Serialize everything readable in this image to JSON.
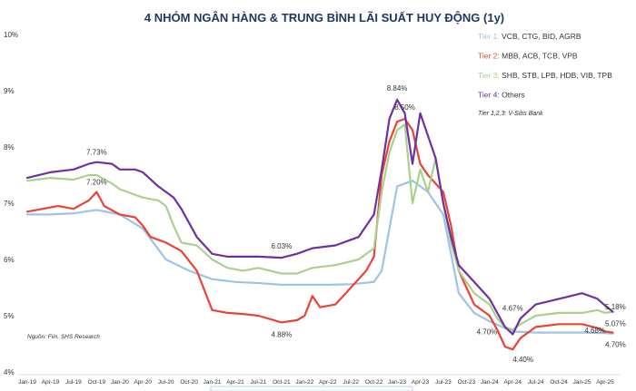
{
  "chart_data": {
    "type": "line",
    "title": "4 NHÓM NGÂN HÀNG & TRUNG BÌNH LÃI SUẤT HUY ĐỘNG (1y)",
    "ylim": [
      4,
      10
    ],
    "yticks": [
      "4%",
      "5%",
      "6%",
      "7%",
      "8%",
      "9%",
      "10%"
    ],
    "x_labels": [
      "Jan-19",
      "Apr-19",
      "Jul-19",
      "Oct-19",
      "Jan-20",
      "Apr-20",
      "Jul-20",
      "Oct-20",
      "Jan-21",
      "Apr-21",
      "Jul-21",
      "Oct-21",
      "Jan-22",
      "Apr-22",
      "Jul-22",
      "Oct-22",
      "Jan-23",
      "Apr-23",
      "Jul-23",
      "Oct-23",
      "Jan-24",
      "Apr-24",
      "Jul-24",
      "Oct-24",
      "Jan-25",
      "Apr-25"
    ],
    "legend_note": "Tier 1,2,3: V-Sibs Bank",
    "source": "Nguồn: Fiin, SHS Research",
    "series": [
      {
        "name": "Tier 1: VCB, CTG, BID, AGRB",
        "color": "#9dc3e6",
        "points": [
          [
            0,
            6.8
          ],
          [
            3,
            6.8
          ],
          [
            6,
            6.82
          ],
          [
            9,
            6.88
          ],
          [
            12,
            6.8
          ],
          [
            15,
            6.55
          ],
          [
            18,
            6.0
          ],
          [
            21,
            5.8
          ],
          [
            24,
            5.65
          ],
          [
            27,
            5.6
          ],
          [
            30,
            5.58
          ],
          [
            33,
            5.55
          ],
          [
            36,
            5.55
          ],
          [
            39,
            5.55
          ],
          [
            42,
            5.56
          ],
          [
            45,
            5.6
          ],
          [
            46,
            5.8
          ],
          [
            48,
            7.3
          ],
          [
            50,
            7.4
          ],
          [
            51,
            7.3
          ],
          [
            52,
            7.2
          ],
          [
            54,
            6.8
          ],
          [
            56,
            5.4
          ],
          [
            58,
            5.05
          ],
          [
            60,
            4.9
          ],
          [
            62,
            4.78
          ],
          [
            63,
            4.72
          ],
          [
            66,
            4.7
          ],
          [
            69,
            4.7
          ],
          [
            72,
            4.7
          ],
          [
            75,
            4.69
          ],
          [
            76,
            4.68
          ]
        ]
      },
      {
        "name": "Tier 2: MBB, ACB, TCB, VPB",
        "color": "#ea4335",
        "points": [
          [
            0,
            6.85
          ],
          [
            2,
            6.9
          ],
          [
            4,
            6.95
          ],
          [
            6,
            6.9
          ],
          [
            8,
            7.05
          ],
          [
            9,
            7.2
          ],
          [
            10,
            6.95
          ],
          [
            12,
            6.8
          ],
          [
            14,
            6.75
          ],
          [
            15,
            6.6
          ],
          [
            16,
            6.4
          ],
          [
            17,
            6.35
          ],
          [
            18,
            6.3
          ],
          [
            20,
            6.15
          ],
          [
            22,
            5.8
          ],
          [
            24,
            5.1
          ],
          [
            26,
            5.05
          ],
          [
            28,
            5.03
          ],
          [
            30,
            5.0
          ],
          [
            33,
            4.88
          ],
          [
            35,
            4.92
          ],
          [
            36,
            5.0
          ],
          [
            37,
            5.35
          ],
          [
            38,
            5.15
          ],
          [
            40,
            5.2
          ],
          [
            42,
            5.5
          ],
          [
            44,
            5.8
          ],
          [
            45,
            6.05
          ],
          [
            46,
            7.5
          ],
          [
            47,
            8.1
          ],
          [
            48,
            8.45
          ],
          [
            49,
            8.5
          ],
          [
            50,
            8.3
          ],
          [
            51,
            7.7
          ],
          [
            52,
            7.5
          ],
          [
            54,
            7.2
          ],
          [
            55,
            6.6
          ],
          [
            56,
            5.8
          ],
          [
            58,
            5.2
          ],
          [
            60,
            5.0
          ],
          [
            61,
            4.75
          ],
          [
            62,
            4.45
          ],
          [
            63,
            4.4
          ],
          [
            64,
            4.6
          ],
          [
            66,
            4.8
          ],
          [
            69,
            4.85
          ],
          [
            72,
            4.85
          ],
          [
            74,
            4.78
          ],
          [
            75,
            4.72
          ],
          [
            76,
            4.7
          ]
        ]
      },
      {
        "name": "Tier 3: SHB, STB, LPB, HDB, VIB, TPB",
        "color": "#a9d18e",
        "points": [
          [
            0,
            7.4
          ],
          [
            3,
            7.45
          ],
          [
            6,
            7.42
          ],
          [
            8,
            7.5
          ],
          [
            9,
            7.5
          ],
          [
            11,
            7.35
          ],
          [
            12,
            7.25
          ],
          [
            15,
            7.1
          ],
          [
            17,
            7.05
          ],
          [
            18,
            6.95
          ],
          [
            19,
            6.6
          ],
          [
            20,
            6.3
          ],
          [
            22,
            6.25
          ],
          [
            24,
            6.0
          ],
          [
            26,
            5.85
          ],
          [
            28,
            5.8
          ],
          [
            30,
            5.85
          ],
          [
            33,
            5.75
          ],
          [
            35,
            5.75
          ],
          [
            37,
            5.85
          ],
          [
            40,
            5.9
          ],
          [
            43,
            6.0
          ],
          [
            45,
            6.2
          ],
          [
            46,
            7.2
          ],
          [
            47,
            7.9
          ],
          [
            48,
            8.3
          ],
          [
            49,
            8.4
          ],
          [
            50,
            7.0
          ],
          [
            51,
            7.6
          ],
          [
            52,
            7.2
          ],
          [
            53,
            7.8
          ],
          [
            54,
            7.0
          ],
          [
            55,
            6.3
          ],
          [
            56,
            5.8
          ],
          [
            58,
            5.4
          ],
          [
            60,
            5.2
          ],
          [
            61,
            4.95
          ],
          [
            62,
            4.8
          ],
          [
            63,
            4.75
          ],
          [
            64,
            4.85
          ],
          [
            66,
            5.0
          ],
          [
            69,
            5.05
          ],
          [
            72,
            5.05
          ],
          [
            74,
            5.1
          ],
          [
            75,
            5.05
          ],
          [
            76,
            5.07
          ]
        ]
      },
      {
        "name": "Tier 4: Others",
        "color": "#7030a0",
        "points": [
          [
            0,
            7.45
          ],
          [
            3,
            7.55
          ],
          [
            6,
            7.6
          ],
          [
            8,
            7.7
          ],
          [
            9,
            7.73
          ],
          [
            11,
            7.7
          ],
          [
            12,
            7.6
          ],
          [
            14,
            7.6
          ],
          [
            15,
            7.55
          ],
          [
            17,
            7.3
          ],
          [
            19,
            7.1
          ],
          [
            20,
            6.9
          ],
          [
            22,
            6.4
          ],
          [
            24,
            6.1
          ],
          [
            26,
            6.05
          ],
          [
            28,
            6.05
          ],
          [
            30,
            6.05
          ],
          [
            33,
            6.03
          ],
          [
            35,
            6.1
          ],
          [
            37,
            6.2
          ],
          [
            40,
            6.25
          ],
          [
            43,
            6.4
          ],
          [
            45,
            6.8
          ],
          [
            46,
            7.6
          ],
          [
            47,
            8.5
          ],
          [
            48,
            8.84
          ],
          [
            49,
            8.6
          ],
          [
            50,
            7.7
          ],
          [
            51,
            8.6
          ],
          [
            52,
            8.2
          ],
          [
            53,
            7.8
          ],
          [
            54,
            7.0
          ],
          [
            55,
            6.4
          ],
          [
            56,
            5.9
          ],
          [
            58,
            5.6
          ],
          [
            60,
            5.3
          ],
          [
            61,
            5.05
          ],
          [
            62,
            4.8
          ],
          [
            63,
            4.67
          ],
          [
            64,
            4.95
          ],
          [
            66,
            5.2
          ],
          [
            69,
            5.3
          ],
          [
            72,
            5.4
          ],
          [
            74,
            5.3
          ],
          [
            75,
            5.18
          ],
          [
            76,
            5.07
          ]
        ]
      }
    ],
    "annotations": [
      {
        "text": "7.73%",
        "x": 9,
        "y": 7.73,
        "anchor": "middle",
        "dy": -8
      },
      {
        "text": "7.20%",
        "x": 9,
        "y": 7.2,
        "anchor": "middle",
        "dy": -8
      },
      {
        "text": "6.03%",
        "x": 33,
        "y": 6.03,
        "anchor": "middle",
        "dy": -10
      },
      {
        "text": "4.88%",
        "x": 33,
        "y": 4.88,
        "anchor": "middle",
        "dy": 16
      },
      {
        "text": "8.84%",
        "x": 48,
        "y": 8.84,
        "anchor": "middle",
        "dy": -10
      },
      {
        "text": "8.50%",
        "x": 49,
        "y": 8.5,
        "anchor": "middle",
        "dy": -10
      },
      {
        "text": "4.67%",
        "x": 63,
        "y": 4.67,
        "anchor": "middle",
        "dy": -26
      },
      {
        "text": "4.70%",
        "x": 61,
        "y": 4.7,
        "anchor": "end",
        "dy": 2
      },
      {
        "text": "4.40%",
        "x": 63,
        "y": 4.4,
        "anchor": "start",
        "dy": 14
      },
      {
        "text": "5.18%",
        "x": 75,
        "y": 5.18,
        "anchor": "start",
        "dy": 4
      },
      {
        "text": "5.07%",
        "x": 75,
        "y": 5.07,
        "anchor": "start",
        "dy": 16
      },
      {
        "text": "4.68%",
        "x": 75,
        "y": 4.68,
        "anchor": "end",
        "dy": -1
      },
      {
        "text": "4.70%",
        "x": 75,
        "y": 4.7,
        "anchor": "start",
        "dy": 16
      }
    ]
  }
}
